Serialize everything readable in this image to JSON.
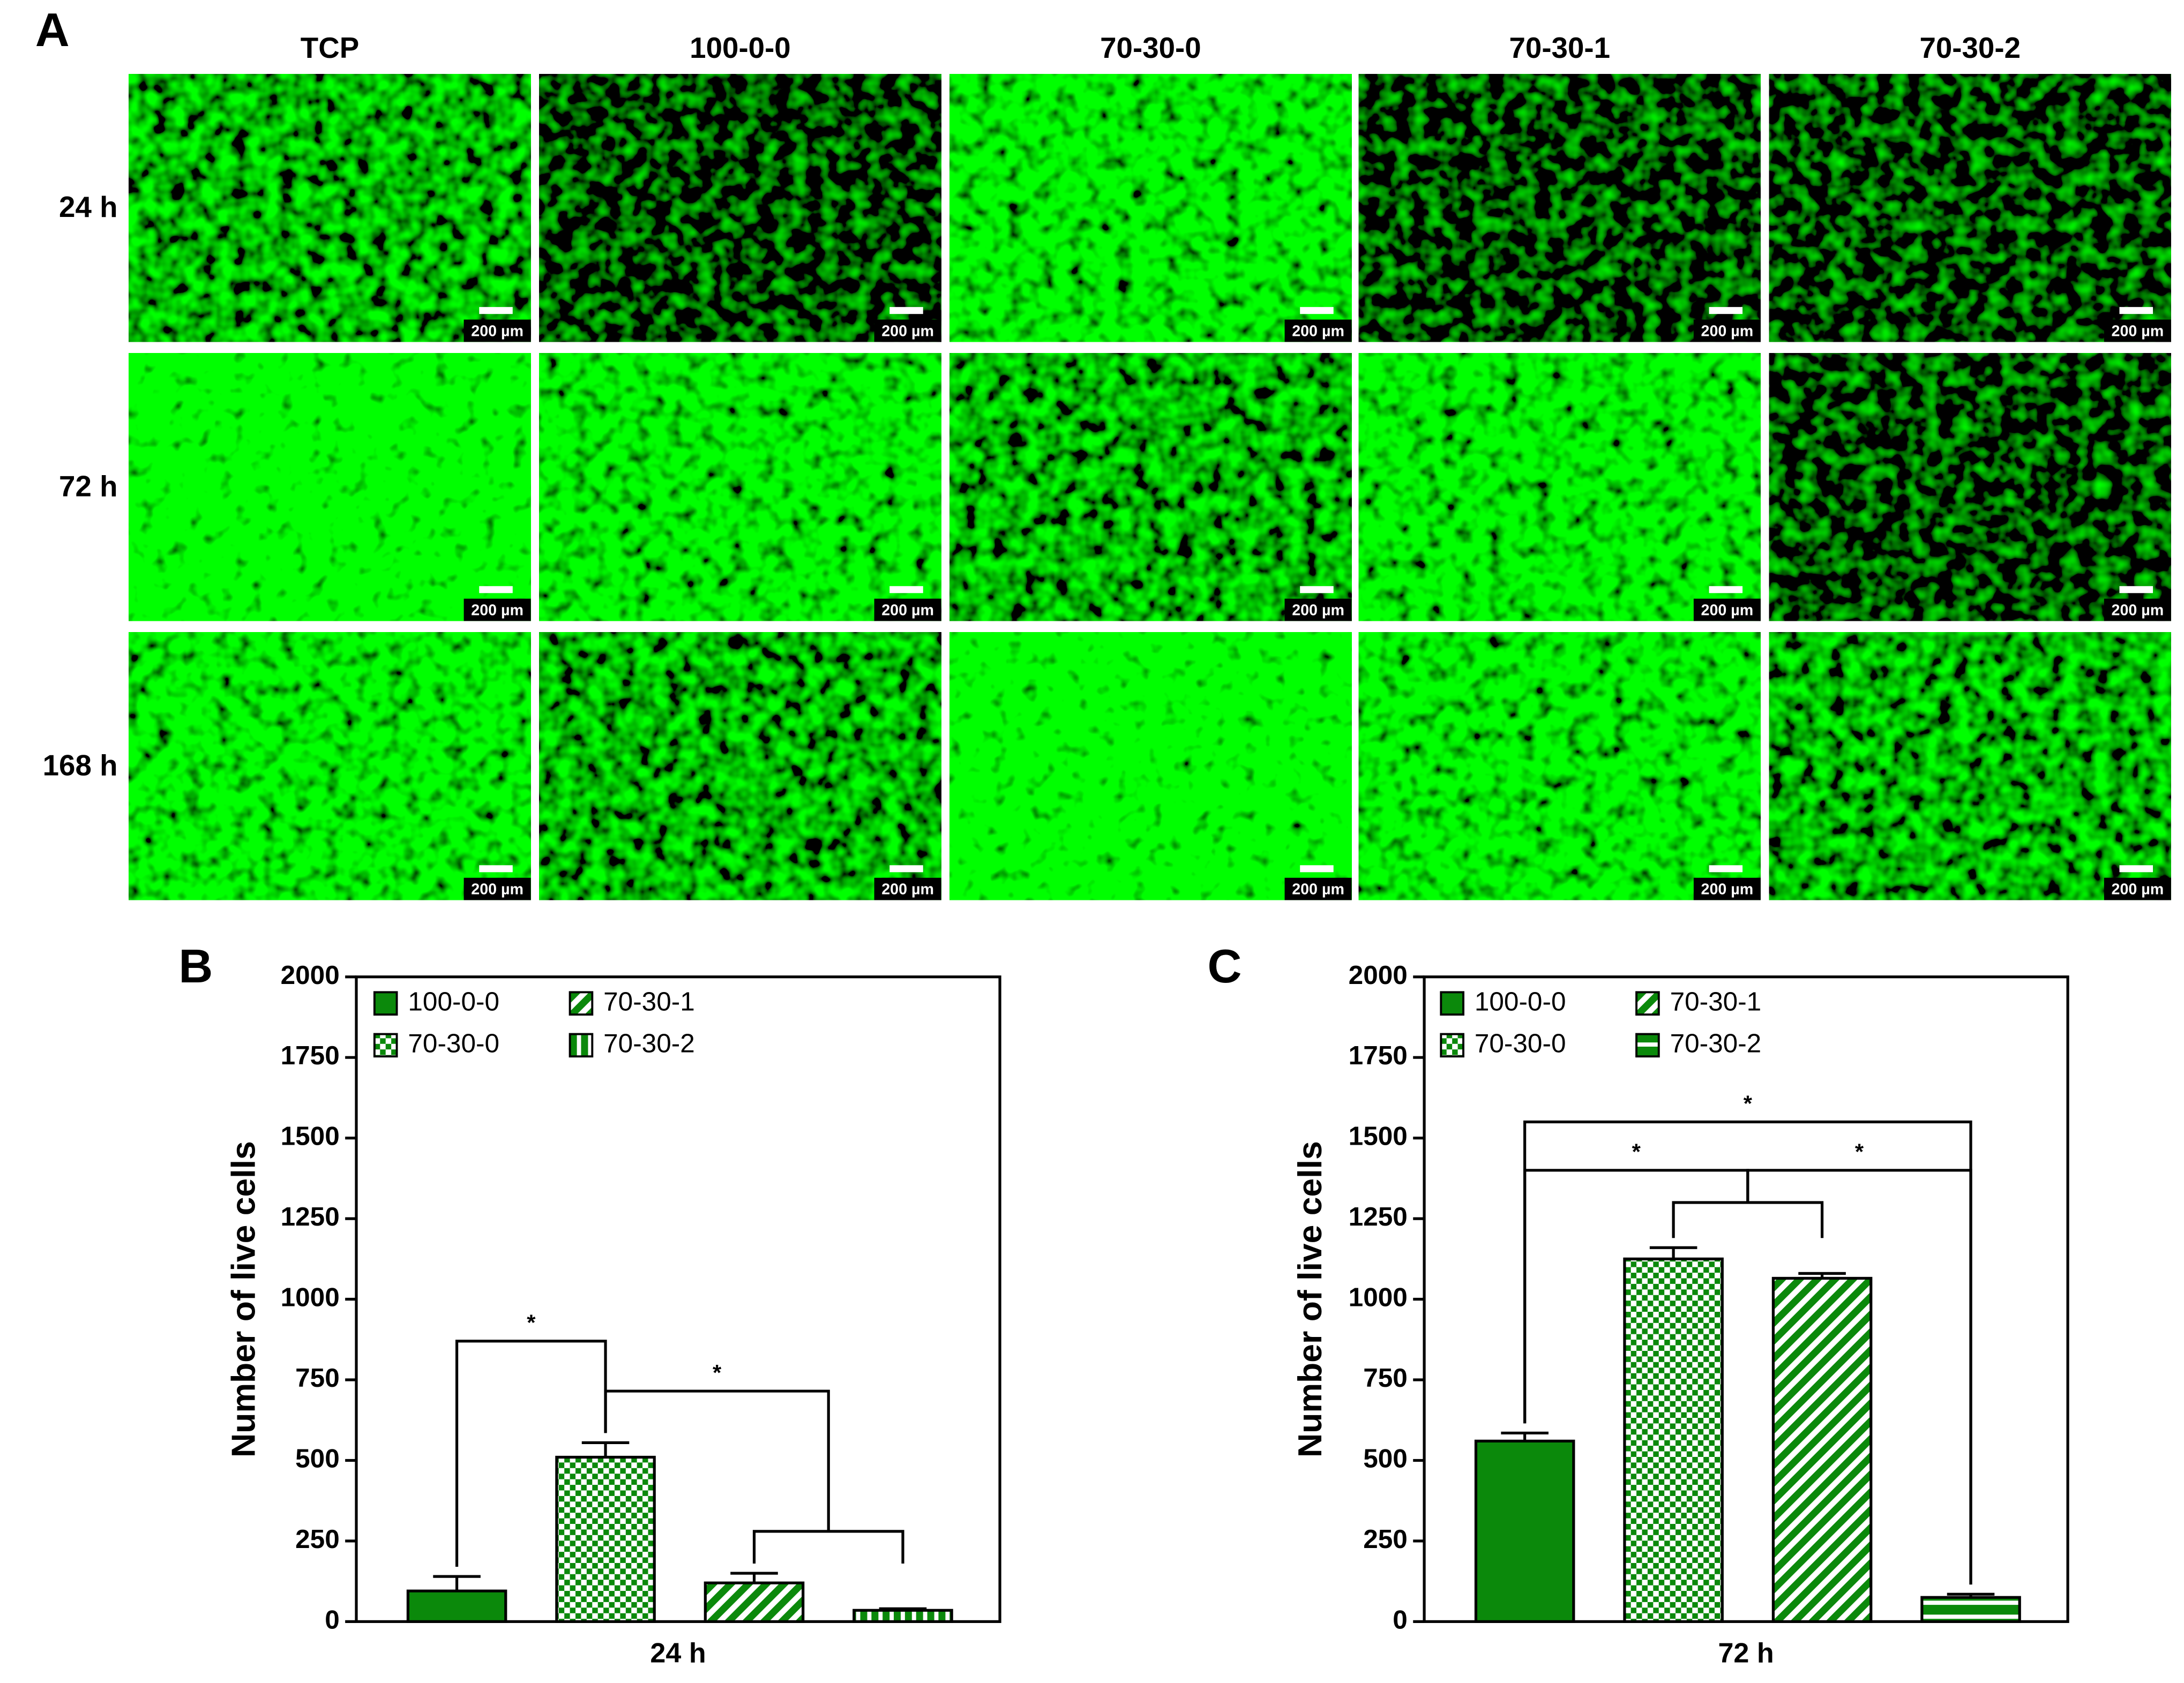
{
  "panel_a": {
    "label": "A",
    "columns": [
      "TCP",
      "100-0-0",
      "70-30-0",
      "70-30-1",
      "70-30-2"
    ],
    "rows": [
      "24 h",
      "72 h",
      "168 h"
    ],
    "scale_bar": "200 µm"
  },
  "chart_data": [
    {
      "type": "bar",
      "panel": "B",
      "y_label": "Number of live cells",
      "categories": [
        "24 h"
      ],
      "color": "#0b890b",
      "ylim": [
        0,
        2000
      ],
      "yticks": [
        0,
        250,
        500,
        750,
        1000,
        1250,
        1500,
        1750,
        2000
      ],
      "series": [
        {
          "name": "100-0-0",
          "pattern": "solid",
          "values": [
            95
          ],
          "errors": [
            45
          ]
        },
        {
          "name": "70-30-0",
          "pattern": "checker",
          "values": [
            510
          ],
          "errors": [
            45
          ]
        },
        {
          "name": "70-30-1",
          "pattern": "diagonal",
          "values": [
            120
          ],
          "errors": [
            30
          ]
        },
        {
          "name": "70-30-2",
          "pattern": "vertical",
          "values": [
            35
          ],
          "errors": [
            5
          ]
        }
      ],
      "comparisons": [
        {
          "a": [
            0
          ],
          "b": [
            1
          ],
          "label": "*"
        },
        {
          "a": [
            1
          ],
          "b": [
            2,
            3
          ],
          "label": "*"
        }
      ]
    },
    {
      "type": "bar",
      "panel": "C",
      "y_label": "Number of live cells",
      "categories": [
        "72 h"
      ],
      "color": "#0b890b",
      "ylim": [
        0,
        2000
      ],
      "yticks": [
        0,
        250,
        500,
        750,
        1000,
        1250,
        1500,
        1750,
        2000
      ],
      "series": [
        {
          "name": "100-0-0",
          "pattern": "solid",
          "values": [
            560
          ],
          "errors": [
            25
          ]
        },
        {
          "name": "70-30-0",
          "pattern": "checker",
          "values": [
            1125
          ],
          "errors": [
            35
          ]
        },
        {
          "name": "70-30-1",
          "pattern": "diagonal",
          "values": [
            1065
          ],
          "errors": [
            15
          ]
        },
        {
          "name": "70-30-2",
          "pattern": "horizontal",
          "values": [
            75
          ],
          "errors": [
            10
          ]
        }
      ],
      "comparisons": [
        {
          "a": [
            0
          ],
          "b": [
            1,
            2
          ],
          "label": "*"
        },
        {
          "a": [
            1,
            2
          ],
          "b": [
            3
          ],
          "label": "*"
        },
        {
          "a": [
            0
          ],
          "b": [
            3
          ],
          "label": "*"
        }
      ]
    }
  ]
}
